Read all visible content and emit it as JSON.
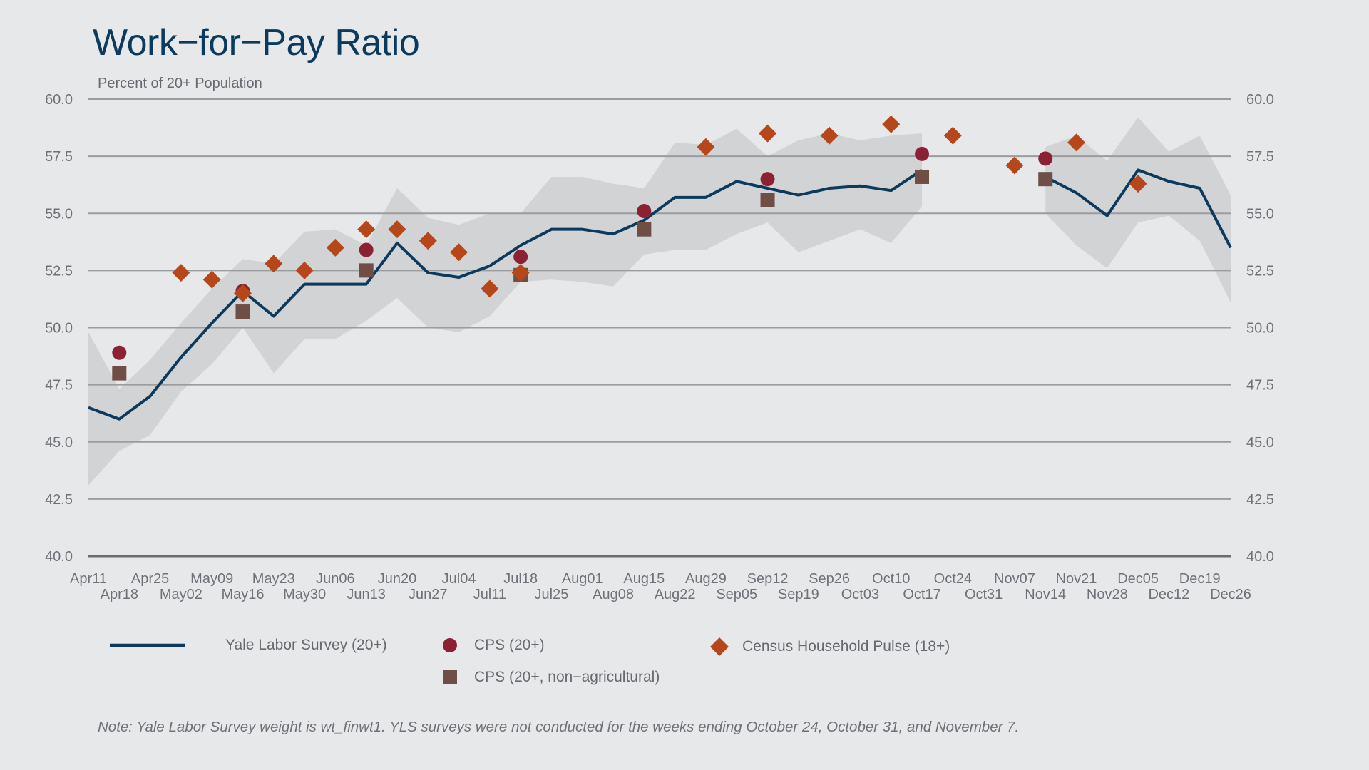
{
  "title": "Work−for−Pay Ratio",
  "subtitle": "Percent of 20+ Population",
  "note": "Note: Yale Labor Survey weight is wt_finwt1. YLS surveys were not conducted for the weeks ending October 24, October 31, and November 7.",
  "legend": {
    "yls": "Yale Labor Survey (20+)",
    "cps": "CPS (20+)",
    "pulse": "Census Household Pulse (18+)",
    "cps_nonag": "CPS (20+, non−agricultural)"
  },
  "colors": {
    "background": "#e7e8ea",
    "yls_line": "#0b3a5c",
    "band": "#d2d3d5",
    "cps": "#8b2233",
    "pulse": "#b5471b",
    "cps_nonag": "#6e4e45",
    "grid": "#9a9ca0",
    "axis": "#6a6c70"
  },
  "chart_data": {
    "type": "line",
    "ylim": [
      40.0,
      60.0
    ],
    "yticks": [
      "40.0",
      "42.5",
      "45.0",
      "47.5",
      "50.0",
      "52.5",
      "55.0",
      "57.5",
      "60.0"
    ],
    "categories": [
      "Apr11",
      "Apr18",
      "Apr25",
      "May02",
      "May09",
      "May16",
      "May23",
      "May30",
      "Jun06",
      "Jun13",
      "Jun20",
      "Jun27",
      "Jul04",
      "Jul11",
      "Jul18",
      "Jul25",
      "Aug01",
      "Aug08",
      "Aug15",
      "Aug22",
      "Aug29",
      "Sep05",
      "Sep12",
      "Sep19",
      "Sep26",
      "Oct03",
      "Oct10",
      "Oct17",
      "Oct24",
      "Oct31",
      "Nov07",
      "Nov14",
      "Nov21",
      "Nov28",
      "Dec05",
      "Dec12",
      "Dec19",
      "Dec26"
    ],
    "grid": true,
    "legend_position": "bottom",
    "series": [
      {
        "name": "Yale Labor Survey (20+)",
        "kind": "line",
        "values": [
          46.5,
          46.0,
          47.0,
          48.7,
          50.2,
          51.6,
          50.5,
          51.9,
          51.9,
          51.9,
          53.7,
          52.4,
          52.2,
          52.7,
          53.6,
          54.3,
          54.3,
          54.1,
          54.7,
          55.7,
          55.7,
          56.4,
          56.1,
          55.8,
          56.1,
          56.2,
          56.0,
          56.9,
          null,
          null,
          null,
          56.6,
          55.9,
          54.9,
          56.9,
          56.4,
          56.1,
          53.5
        ],
        "band_low": [
          43.1,
          44.6,
          45.3,
          47.2,
          48.4,
          50.0,
          48.0,
          49.5,
          49.5,
          50.3,
          51.3,
          50.0,
          49.8,
          50.5,
          52.0,
          52.1,
          52.0,
          51.8,
          53.2,
          53.4,
          53.4,
          54.1,
          54.6,
          53.3,
          53.8,
          54.3,
          53.7,
          55.3,
          null,
          null,
          null,
          55.0,
          53.6,
          52.6,
          54.6,
          54.9,
          53.8,
          51.1
        ],
        "band_high": [
          49.8,
          47.3,
          48.6,
          50.2,
          51.7,
          53.0,
          52.8,
          54.2,
          54.3,
          53.6,
          56.1,
          54.8,
          54.5,
          55.0,
          55.0,
          56.6,
          56.6,
          56.3,
          56.1,
          58.1,
          58.0,
          58.7,
          57.5,
          58.2,
          58.5,
          58.2,
          58.4,
          58.5,
          null,
          null,
          null,
          57.9,
          58.4,
          57.3,
          59.2,
          57.7,
          58.4,
          55.8
        ]
      },
      {
        "name": "CPS (20+)",
        "kind": "circle",
        "points": [
          [
            "Apr18",
            48.9
          ],
          [
            "May16",
            51.6
          ],
          [
            "Jun13",
            53.4
          ],
          [
            "Jul18",
            53.1
          ],
          [
            "Aug15",
            55.1
          ],
          [
            "Sep12",
            56.5
          ],
          [
            "Oct17",
            57.6
          ],
          [
            "Nov14",
            57.4
          ]
        ]
      },
      {
        "name": "CPS (20+, non−agricultural)",
        "kind": "square",
        "points": [
          [
            "Apr18",
            48.0
          ],
          [
            "May16",
            50.7
          ],
          [
            "Jun13",
            52.5
          ],
          [
            "Jul18",
            52.3
          ],
          [
            "Aug15",
            54.3
          ],
          [
            "Sep12",
            55.6
          ],
          [
            "Oct17",
            56.6
          ],
          [
            "Nov14",
            56.5
          ]
        ]
      },
      {
        "name": "Census Household Pulse (18+)",
        "kind": "diamond",
        "points": [
          [
            "May02",
            52.4
          ],
          [
            "May09",
            52.1
          ],
          [
            "May16",
            51.5
          ],
          [
            "May23",
            52.8
          ],
          [
            "May30",
            52.5
          ],
          [
            "Jun06",
            53.5
          ],
          [
            "Jun13",
            54.3
          ],
          [
            "Jun20",
            54.3
          ],
          [
            "Jun27",
            53.8
          ],
          [
            "Jul04",
            53.3
          ],
          [
            "Jul11",
            51.7
          ],
          [
            "Jul18",
            52.4
          ],
          [
            "Aug29",
            57.9
          ],
          [
            "Sep12",
            58.5
          ],
          [
            "Sep26",
            58.4
          ],
          [
            "Oct10",
            58.9
          ],
          [
            "Oct24",
            58.4
          ],
          [
            "Nov07",
            57.1
          ],
          [
            "Nov21",
            58.1
          ],
          [
            "Dec05",
            56.3
          ]
        ]
      }
    ]
  }
}
